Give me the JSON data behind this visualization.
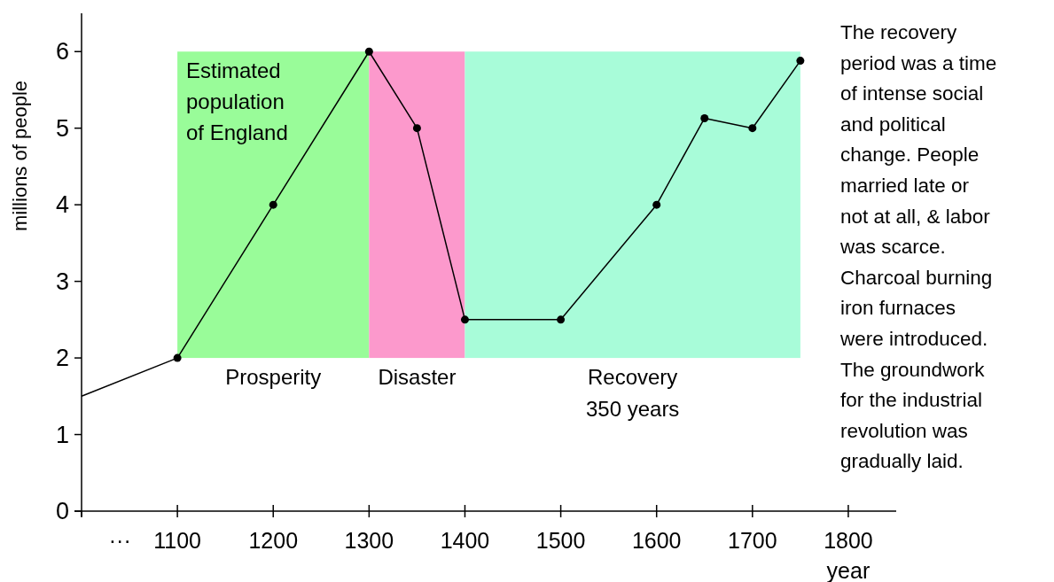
{
  "chart_data": {
    "type": "line",
    "title": "Estimated\npopulation\nof England",
    "ylabel": "millions of people",
    "xlabel": "year",
    "x": [
      1000,
      1100,
      1200,
      1300,
      1350,
      1400,
      1500,
      1600,
      1650,
      1700,
      1750
    ],
    "series": [
      {
        "color": "#000000",
        "values": [
          1.5,
          2,
          4,
          6,
          5,
          2.5,
          2.5,
          4,
          5.13,
          5,
          5.88
        ],
        "marker": "circle"
      }
    ],
    "xlim": [
      1000,
      1850
    ],
    "xticks": [
      {
        "value": 1040,
        "label": "···"
      },
      1100,
      1200,
      1300,
      1400,
      1500,
      1600,
      1700,
      1800
    ],
    "ylim": [
      0,
      6.5
    ],
    "yticks": [
      0,
      1,
      2,
      3,
      4,
      5,
      6
    ],
    "bands": [
      {
        "axis": "x",
        "from": 1100,
        "to": 1300,
        "label": "Prosperity",
        "color": "#99fc99"
      },
      {
        "axis": "x",
        "from": 1300,
        "to": 1400,
        "label": "Disaster",
        "color": "#fc99cc"
      },
      {
        "axis": "x",
        "from": 1400,
        "to": 1750,
        "label": "Recovery\n350 years",
        "color": "#a8fcd9"
      }
    ],
    "annotations": [
      "The recovery\nperiod was a time\nof intense social\nand political\nchange. People\nmarried late or\nnot at all, & labor\nwas scarce.\nCharcoal burning\niron furnaces\nwere introduced.\nThe groundwork\nfor the industrial\nrevolution was\ngradually laid."
    ],
    "grid": false,
    "line_style": "solid"
  }
}
